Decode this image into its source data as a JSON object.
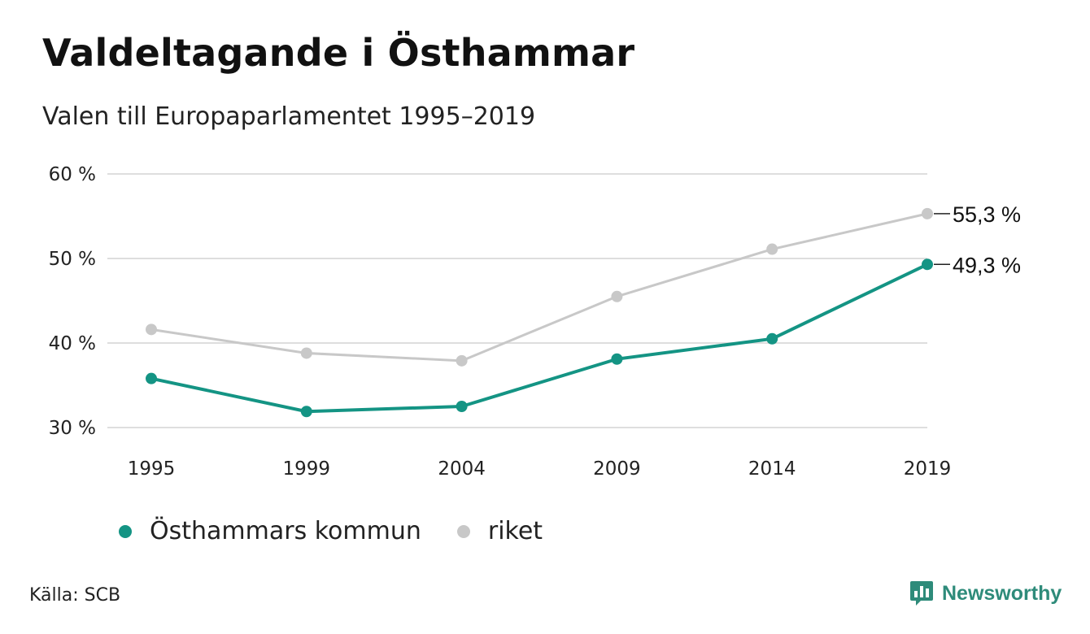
{
  "header": {
    "title": "Valdeltagande i Östhammar",
    "subtitle": "Valen till Europaparlamentet 1995–2019"
  },
  "footer": {
    "source": "Källa: SCB",
    "brand": "Newsworthy"
  },
  "colors": {
    "kommun": "#149484",
    "riket": "#c8c8c8",
    "grid": "#dedede",
    "brand": "#2e8b7a"
  },
  "chart_data": {
    "type": "line",
    "title": "Valdeltagande i Östhammar",
    "subtitle": "Valen till Europaparlamentet 1995–2019",
    "x": [
      "1995",
      "1999",
      "2004",
      "2009",
      "2014",
      "2019"
    ],
    "ylim": [
      30,
      60
    ],
    "yticks": [
      30,
      40,
      50,
      60
    ],
    "ytick_labels": [
      "30 %",
      "40 %",
      "50 %",
      "60 %"
    ],
    "grid": true,
    "legend_position": "bottom-left",
    "series": [
      {
        "name": "Östhammars kommun",
        "color": "#149484",
        "values": [
          35.8,
          31.9,
          32.5,
          38.1,
          40.5,
          49.3
        ],
        "end_label": "49,3 %"
      },
      {
        "name": "riket",
        "color": "#c8c8c8",
        "values": [
          41.6,
          38.8,
          37.9,
          45.5,
          51.1,
          55.3
        ],
        "end_label": "55,3 %"
      }
    ]
  }
}
